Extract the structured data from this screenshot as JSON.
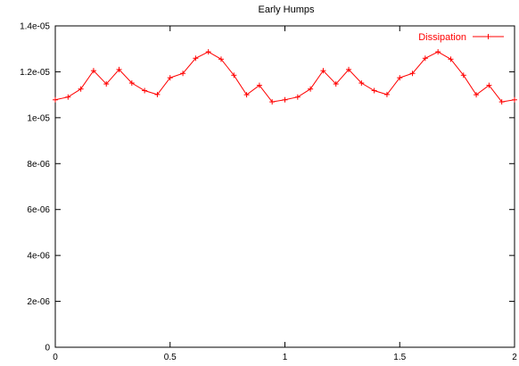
{
  "chart_data": {
    "type": "line",
    "title": "Early Humps",
    "xlabel": "",
    "ylabel": "",
    "xlim": [
      0,
      2
    ],
    "ylim": [
      0,
      1.4e-05
    ],
    "x_ticks": [
      {
        "value": 0,
        "label": "0"
      },
      {
        "value": 0.5,
        "label": "0.5"
      },
      {
        "value": 1,
        "label": "1"
      },
      {
        "value": 1.5,
        "label": "1.5"
      },
      {
        "value": 2,
        "label": "2"
      }
    ],
    "y_ticks": [
      {
        "value": 0,
        "label": "0"
      },
      {
        "value": 2e-06,
        "label": "2e-06"
      },
      {
        "value": 4e-06,
        "label": "4e-06"
      },
      {
        "value": 6e-06,
        "label": "6e-06"
      },
      {
        "value": 8e-06,
        "label": "8e-06"
      },
      {
        "value": 1e-05,
        "label": "1e-05"
      },
      {
        "value": 1.2e-05,
        "label": "1.2e-05"
      },
      {
        "value": 1.4e-05,
        "label": "1.4e-05"
      }
    ],
    "grid": false,
    "legend_position": "top-right",
    "series": [
      {
        "name": "Dissipation",
        "color": "#ff0000",
        "marker": "plus",
        "x": [
          0,
          0.0556,
          0.1111,
          0.1667,
          0.2222,
          0.2778,
          0.3333,
          0.3889,
          0.4444,
          0.5,
          0.5556,
          0.6111,
          0.6667,
          0.7222,
          0.7778,
          0.8333,
          0.8889,
          0.9444,
          1.0,
          1.0556,
          1.1111,
          1.1667,
          1.2222,
          1.2778,
          1.3333,
          1.3889,
          1.4444,
          1.5,
          1.5556,
          1.6111,
          1.6667,
          1.7222,
          1.7778,
          1.8333,
          1.8889,
          1.9444,
          2.0
        ],
        "values": [
          1.078e-05,
          1.09e-05,
          1.125e-05,
          1.205e-05,
          1.147e-05,
          1.21e-05,
          1.151e-05,
          1.118e-05,
          1.101e-05,
          1.174e-05,
          1.193e-05,
          1.259e-05,
          1.287e-05,
          1.255e-05,
          1.185e-05,
          1.1e-05,
          1.141e-05,
          1.069e-05,
          1.078e-05,
          1.09e-05,
          1.125e-05,
          1.205e-05,
          1.147e-05,
          1.21e-05,
          1.151e-05,
          1.118e-05,
          1.101e-05,
          1.174e-05,
          1.193e-05,
          1.259e-05,
          1.287e-05,
          1.255e-05,
          1.185e-05,
          1.1e-05,
          1.141e-05,
          1.069e-05,
          1.078e-05
        ]
      }
    ]
  }
}
